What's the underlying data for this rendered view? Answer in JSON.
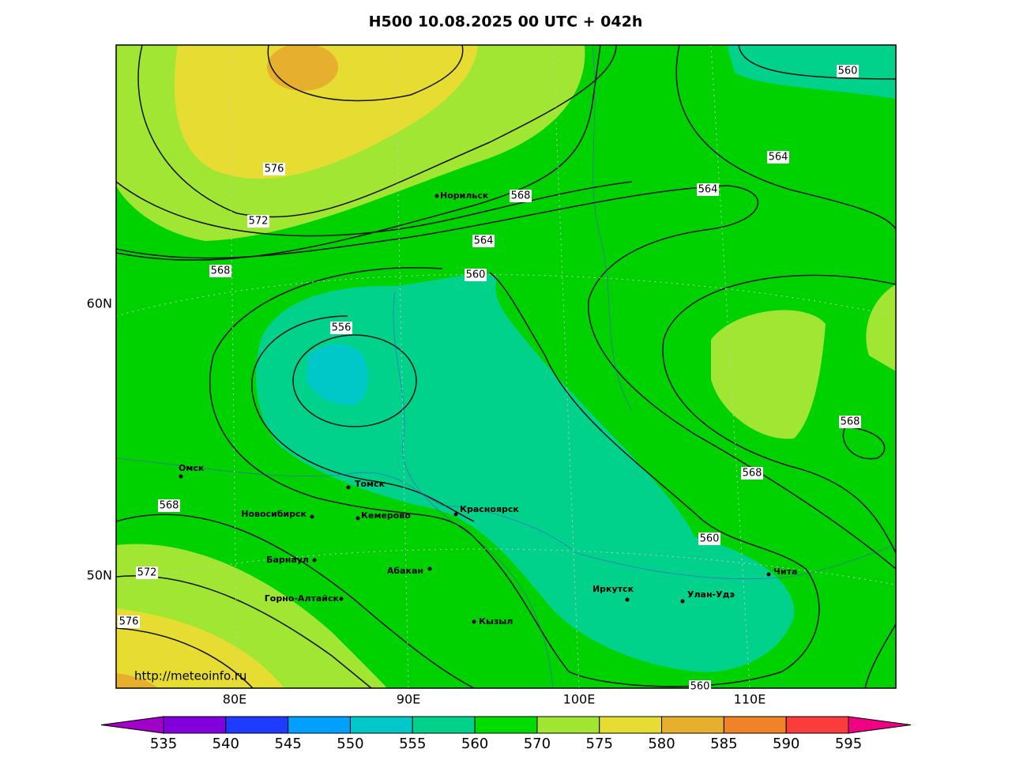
{
  "title": "H500  10.08.2025 00 UTC + 042h",
  "map": {
    "lat_labels": [
      "60N",
      "50N"
    ],
    "lon_labels": [
      "80E",
      "90E",
      "100E",
      "110E"
    ],
    "contour_labels": [
      576,
      572,
      568,
      568,
      564,
      560,
      556,
      568,
      572,
      576,
      564,
      564,
      560,
      568,
      568,
      560,
      560
    ],
    "cities": [
      "Норильск",
      "Омск",
      "Томск",
      "Новосибирск",
      "Кемерово",
      "Красноярск",
      "Барнаул",
      "Абакан",
      "Горно-Алтайск",
      "Кызыл",
      "Иркутск",
      "Улан-Удэ",
      "Чита"
    ],
    "watermark": "http://meteoinfo.ru"
  },
  "colorbar": {
    "ticks": [
      535,
      540,
      545,
      550,
      555,
      560,
      570,
      575,
      580,
      585,
      590,
      595
    ],
    "colors": [
      "#a000c8",
      "#8200dc",
      "#1e3cff",
      "#00a0ff",
      "#00c8c8",
      "#00d28c",
      "#00dc00",
      "#a0e632",
      "#e6dc32",
      "#e6af2d",
      "#f08228",
      "#fa3c3c",
      "#f00082"
    ]
  }
}
